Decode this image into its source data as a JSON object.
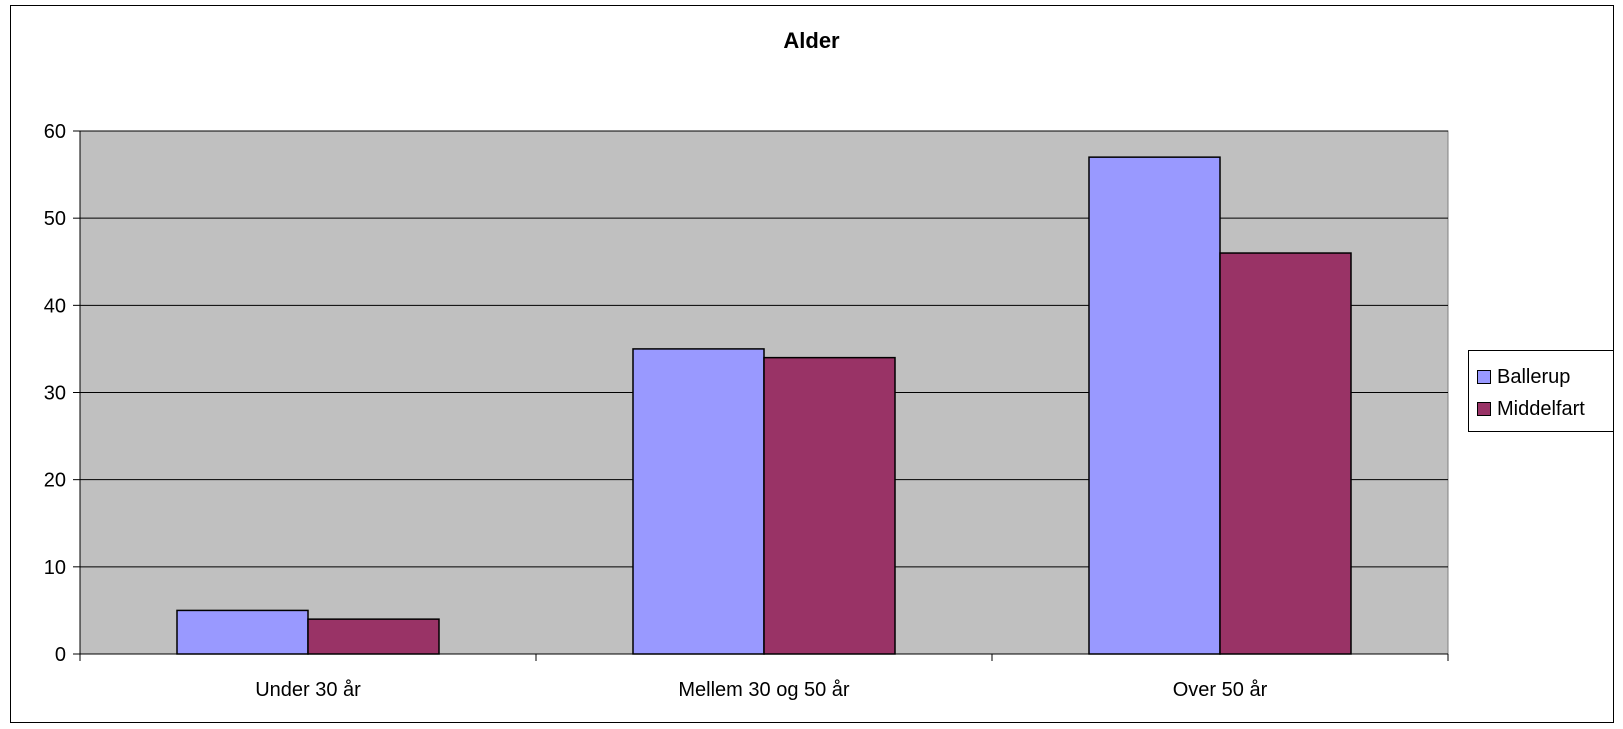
{
  "chart_data": {
    "type": "bar",
    "title": "Alder",
    "categories": [
      "Under 30 år",
      "Mellem 30 og 50 år",
      "Over 50 år"
    ],
    "series": [
      {
        "name": "Ballerup",
        "values": [
          5,
          35,
          57
        ],
        "color": "#9999FF"
      },
      {
        "name": "Middelfart",
        "values": [
          4,
          34,
          46
        ],
        "color": "#993366"
      }
    ],
    "xlabel": "",
    "ylabel": "",
    "ylim": [
      0,
      60
    ],
    "yticks": [
      "0",
      "10",
      "20",
      "30",
      "40",
      "50",
      "60"
    ],
    "grid": true,
    "plot_background": "#C0C0C0",
    "legend": "right"
  }
}
